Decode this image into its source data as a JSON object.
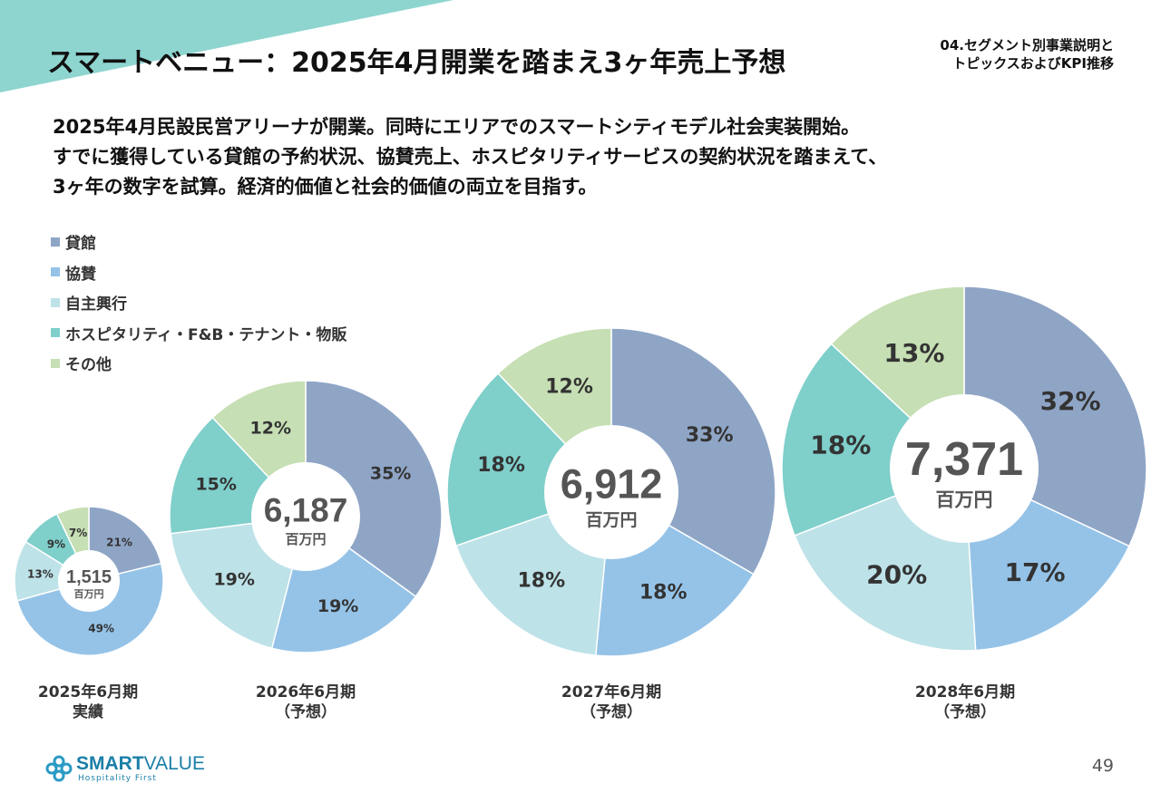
{
  "header": {
    "title": "スマートベニュー：2025年4月開業を踏まえ3ヶ年売上予想",
    "section_line1": "04.セグメント別事業説明と",
    "section_line2": "トピックスおよびKPI推移"
  },
  "intro": {
    "line1": "2025年4月民設民営アリーナが開業。同時にエリアでのスマートシティモデル社会実装開始。",
    "line2": "すでに獲得している貸館の予約状況、協賛売上、ホスピタリティサービスの契約状況を踏まえて、",
    "line3": "3ヶ年の数字を試算。経済的価値と社会的価値の両立を目指す。"
  },
  "legend": [
    {
      "label": "貸館",
      "color": "#8fa5c6"
    },
    {
      "label": "協賛",
      "color": "#95c3e8"
    },
    {
      "label": "自主興行",
      "color": "#bde2e8"
    },
    {
      "label": "ホスピタリティ・F&B・テナント・物販",
      "color": "#7fcfcb"
    },
    {
      "label": "その他",
      "color": "#c6dfb4"
    }
  ],
  "chart_data": {
    "type": "pie",
    "unit": "百万円",
    "series_names": [
      "貸館",
      "協賛",
      "自主興行",
      "ホスピタリティ・F&B・テナント・物販",
      "その他"
    ],
    "colors": [
      "#8fa5c6",
      "#95c3e8",
      "#bde2e8",
      "#7fcfcb",
      "#c6dfb4"
    ],
    "charts": [
      {
        "period": "2025年6月期",
        "note": "実績",
        "total": "1,515",
        "percents": [
          21,
          49,
          13,
          9,
          7
        ]
      },
      {
        "period": "2026年6月期",
        "note": "（予想）",
        "total": "6,187",
        "percents": [
          35,
          19,
          19,
          15,
          12
        ]
      },
      {
        "period": "2027年6月期",
        "note": "（予想）",
        "total": "6,912",
        "percents": [
          33,
          18,
          18,
          18,
          12
        ]
      },
      {
        "period": "2028年6月期",
        "note": "（予想）",
        "total": "7,371",
        "percents": [
          32,
          17,
          20,
          18,
          13
        ]
      }
    ]
  },
  "footer": {
    "logo_bold": "SMART",
    "logo_rest": "VALUE",
    "logo_sub": "Hospitality First",
    "page_number": "49"
  }
}
